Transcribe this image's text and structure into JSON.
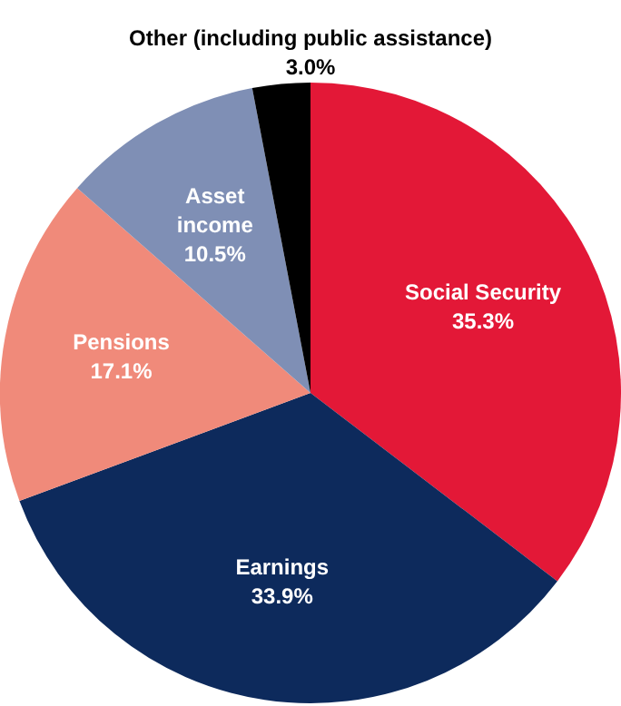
{
  "chart_data": {
    "type": "pie",
    "categories": [
      "Social Security",
      "Earnings",
      "Pensions",
      "Asset income",
      "Other (including public assistance)"
    ],
    "values": [
      35.3,
      33.9,
      17.1,
      10.5,
      3.0
    ],
    "value_labels": [
      "35.3%",
      "33.9%",
      "17.1%",
      "10.5%",
      "3.0%"
    ],
    "colors": [
      "#e31837",
      "#0d2a5c",
      "#f08a7a",
      "#7f8fb5",
      "#000000"
    ],
    "legend": false
  }
}
